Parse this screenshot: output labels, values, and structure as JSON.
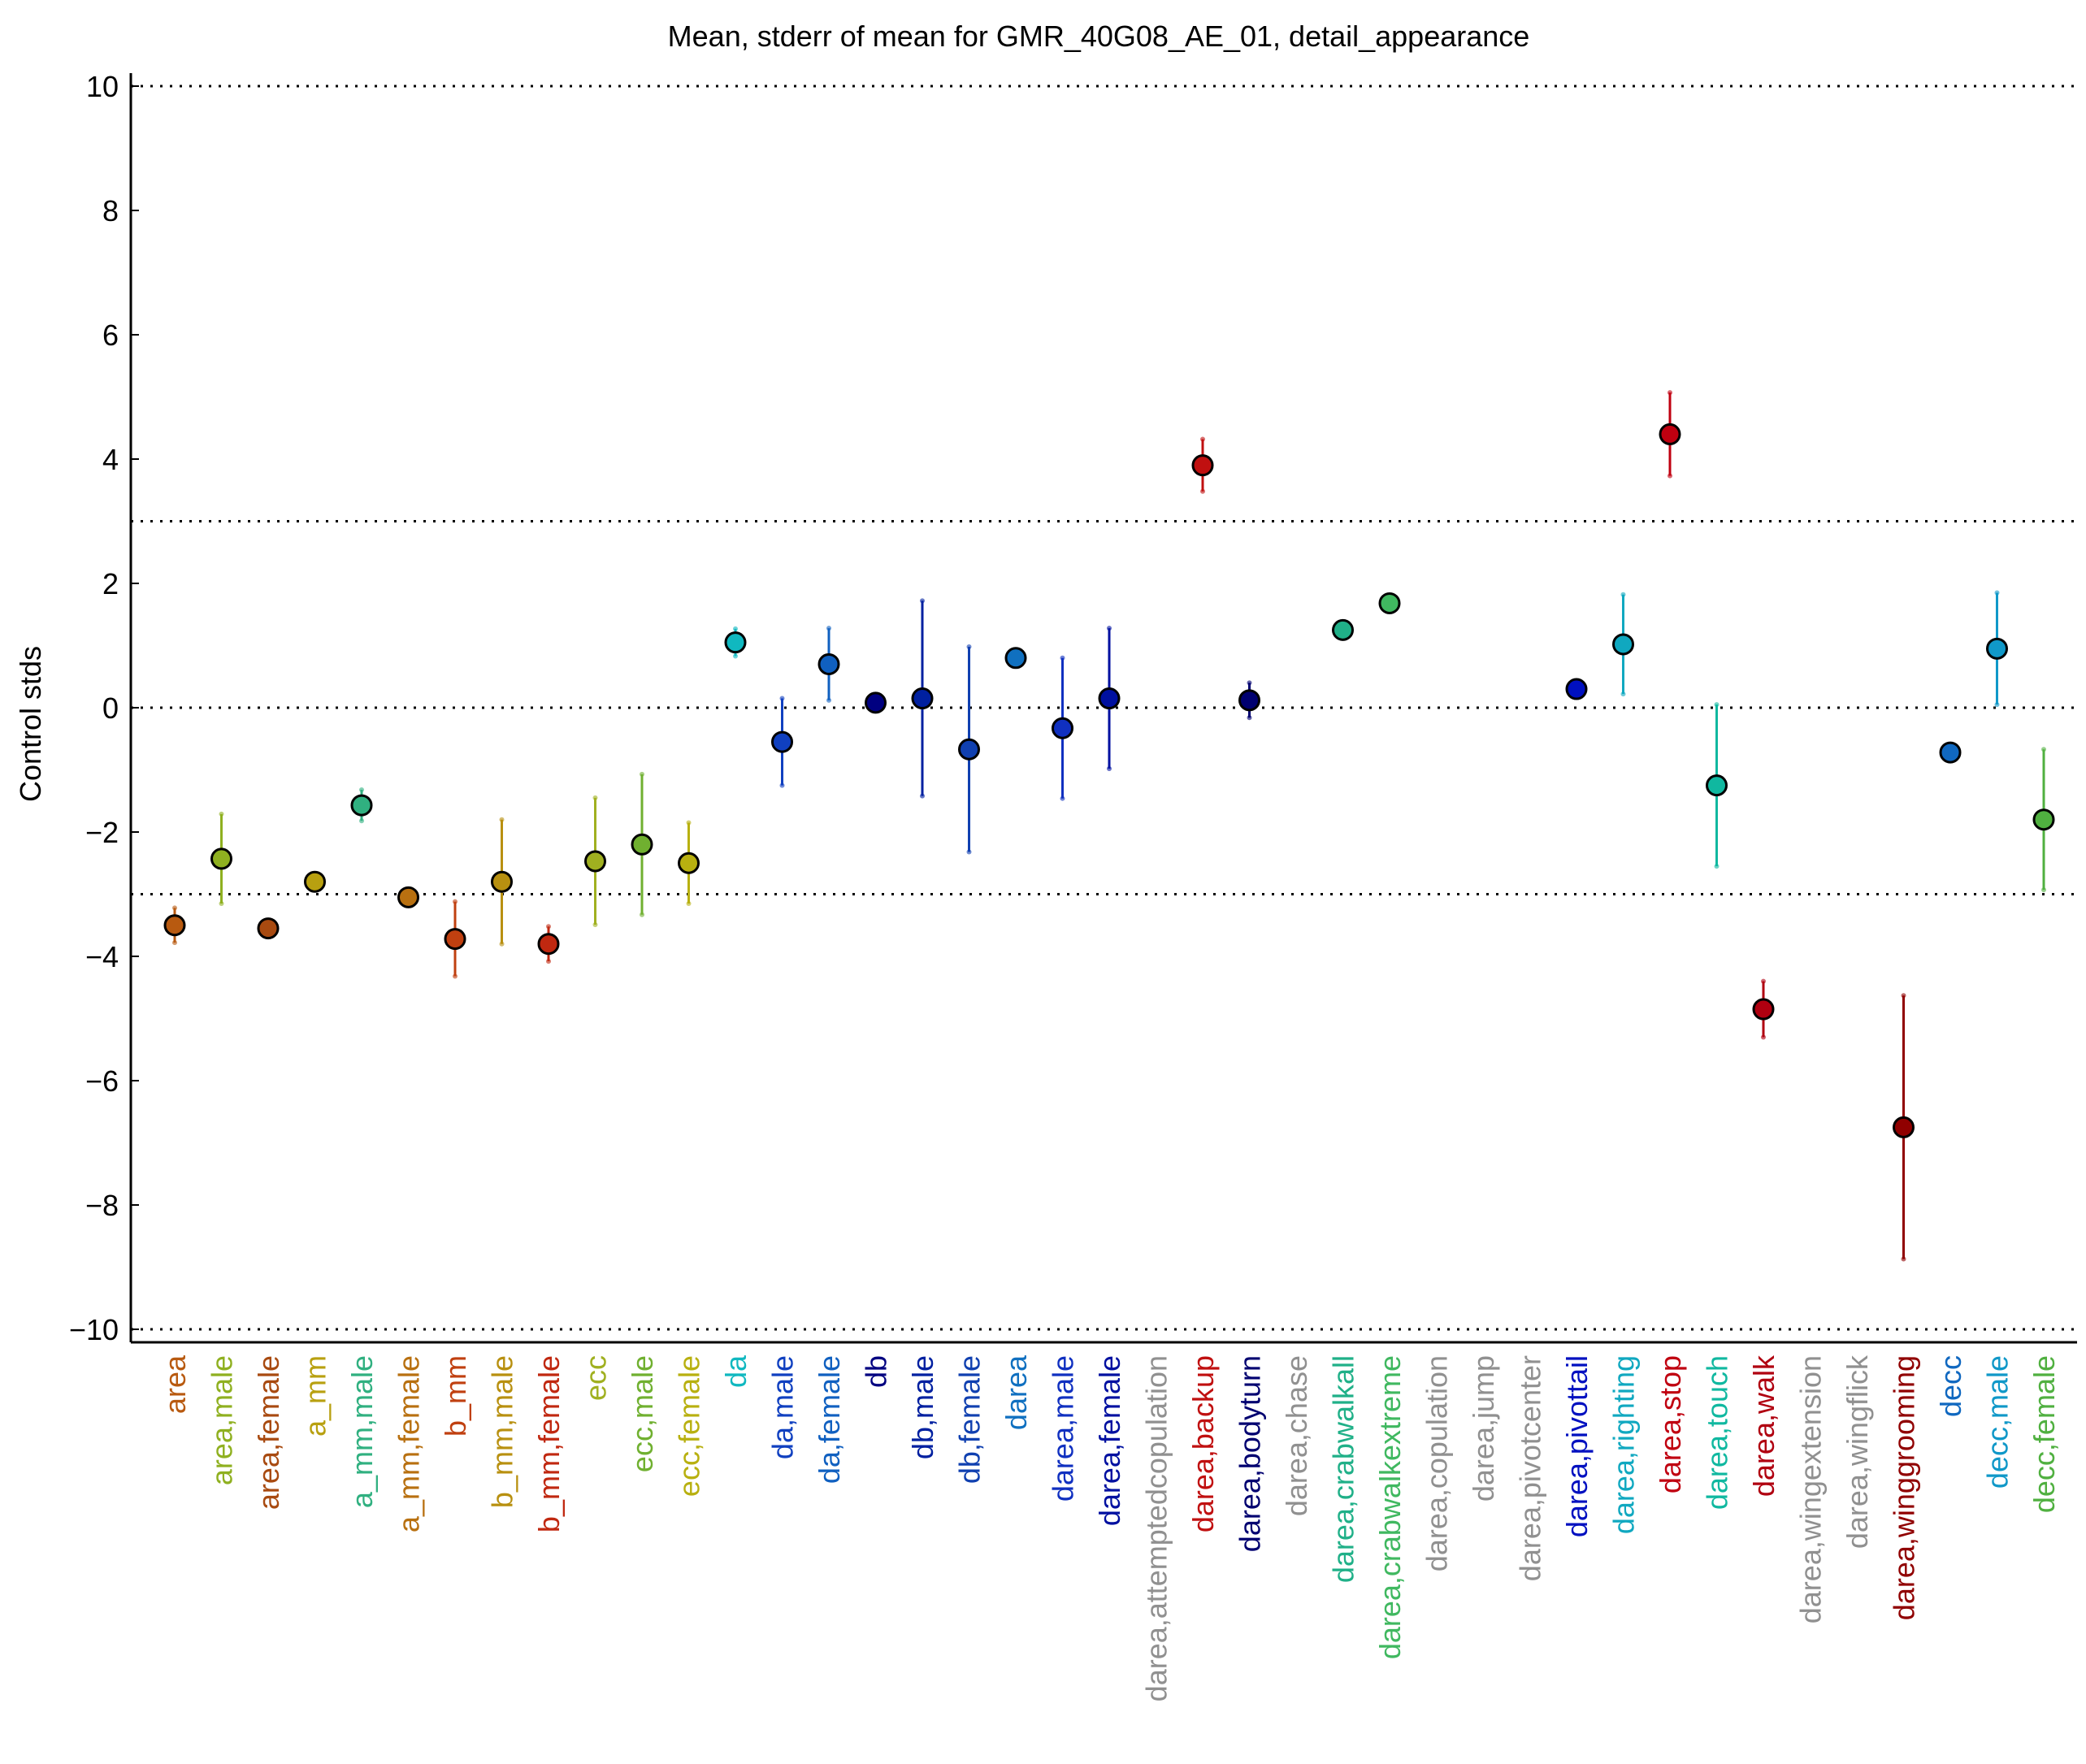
{
  "chart_data": {
    "type": "scatter",
    "title": "Mean, stderr of mean for GMR_40G08_AE_01, detail_appearance",
    "xlabel": "",
    "ylabel": "Control stds",
    "ylim": [
      -10.2,
      10.2
    ],
    "yticks": [
      10,
      8,
      6,
      4,
      2,
      0,
      -2,
      -4,
      -6,
      -8,
      -10
    ],
    "ytick_labels": [
      "10",
      "8",
      "6",
      "4",
      "2",
      "0",
      "−2",
      "−4",
      "−6",
      "−8",
      "−10"
    ],
    "reference_lines": [
      10,
      3,
      0,
      -3,
      -10
    ],
    "grid": false,
    "legend": "none",
    "points": [
      {
        "label": "area",
        "mean": -3.5,
        "err": 0.28,
        "color": "#b85a10"
      },
      {
        "label": "area,male",
        "mean": -2.43,
        "err": 0.72,
        "color": "#8fb020"
      },
      {
        "label": "area,female",
        "mean": -3.55,
        "err": 0.07,
        "color": "#a84a10"
      },
      {
        "label": "a_mm",
        "mean": -2.8,
        "err": 0.07,
        "color": "#b8a010"
      },
      {
        "label": "a_mm,male",
        "mean": -1.57,
        "err": 0.25,
        "color": "#30b080"
      },
      {
        "label": "a_mm,female",
        "mean": -3.05,
        "err": 0.07,
        "color": "#b87010"
      },
      {
        "label": "b_mm",
        "mean": -3.72,
        "err": 0.6,
        "color": "#c04010"
      },
      {
        "label": "b_mm,male",
        "mean": -2.8,
        "err": 1.0,
        "color": "#b89010"
      },
      {
        "label": "b_mm,female",
        "mean": -3.8,
        "err": 0.28,
        "color": "#c02810"
      },
      {
        "label": "ecc",
        "mean": -2.47,
        "err": 1.02,
        "color": "#a0b020"
      },
      {
        "label": "ecc,male",
        "mean": -2.2,
        "err": 1.13,
        "color": "#70b030"
      },
      {
        "label": "ecc,female",
        "mean": -2.5,
        "err": 0.65,
        "color": "#b8b010"
      },
      {
        "label": "da",
        "mean": 1.05,
        "err": 0.22,
        "color": "#10b8c0"
      },
      {
        "label": "da,male",
        "mean": -0.55,
        "err": 0.7,
        "color": "#1040c0"
      },
      {
        "label": "da,female",
        "mean": 0.7,
        "err": 0.58,
        "color": "#1060c0"
      },
      {
        "label": "db",
        "mean": 0.08,
        "err": 0.05,
        "color": "#000080"
      },
      {
        "label": "db,male",
        "mean": 0.15,
        "err": 1.57,
        "color": "#0020a0"
      },
      {
        "label": "db,female",
        "mean": -0.67,
        "err": 1.65,
        "color": "#1040b0"
      },
      {
        "label": "darea",
        "mean": 0.8,
        "err": 0.05,
        "color": "#1070c0"
      },
      {
        "label": "darea,male",
        "mean": -0.33,
        "err": 1.13,
        "color": "#1030c0"
      },
      {
        "label": "darea,female",
        "mean": 0.15,
        "err": 1.13,
        "color": "#0010a0"
      },
      {
        "label": "darea,attemptedcopulation",
        "mean": null,
        "err": null,
        "color": "#909090"
      },
      {
        "label": "darea,backup",
        "mean": 3.9,
        "err": 0.42,
        "color": "#c01010"
      },
      {
        "label": "darea,bodyturn",
        "mean": 0.12,
        "err": 0.28,
        "color": "#000070"
      },
      {
        "label": "darea,chase",
        "mean": null,
        "err": null,
        "color": "#909090"
      },
      {
        "label": "darea,crabwalkall",
        "mean": 1.25,
        "err": 0.05,
        "color": "#20b088"
      },
      {
        "label": "darea,crabwalkextreme",
        "mean": 1.68,
        "err": 0.05,
        "color": "#40b860"
      },
      {
        "label": "darea,copulation",
        "mean": null,
        "err": null,
        "color": "#909090"
      },
      {
        "label": "darea,jump",
        "mean": null,
        "err": null,
        "color": "#909090"
      },
      {
        "label": "darea,pivotcenter",
        "mean": null,
        "err": null,
        "color": "#909090"
      },
      {
        "label": "darea,pivottail",
        "mean": 0.3,
        "err": 0.05,
        "color": "#0010c0"
      },
      {
        "label": "darea,righting",
        "mean": 1.02,
        "err": 0.8,
        "color": "#10a8c0"
      },
      {
        "label": "darea,stop",
        "mean": 4.4,
        "err": 0.67,
        "color": "#c00010"
      },
      {
        "label": "darea,touch",
        "mean": -1.25,
        "err": 1.3,
        "color": "#10b8a0"
      },
      {
        "label": "darea,walk",
        "mean": -4.85,
        "err": 0.45,
        "color": "#b00010"
      },
      {
        "label": "darea,wingextension",
        "mean": null,
        "err": null,
        "color": "#909090"
      },
      {
        "label": "darea,wingflick",
        "mean": null,
        "err": null,
        "color": "#909090"
      },
      {
        "label": "darea,winggrooming",
        "mean": -6.75,
        "err": 2.12,
        "color": "#900000"
      },
      {
        "label": "decc",
        "mean": -0.72,
        "err": 0.05,
        "color": "#1068c0"
      },
      {
        "label": "decc,male",
        "mean": 0.95,
        "err": 0.9,
        "color": "#1098c8"
      },
      {
        "label": "decc,female",
        "mean": -1.8,
        "err": 1.13,
        "color": "#50b040"
      }
    ]
  }
}
